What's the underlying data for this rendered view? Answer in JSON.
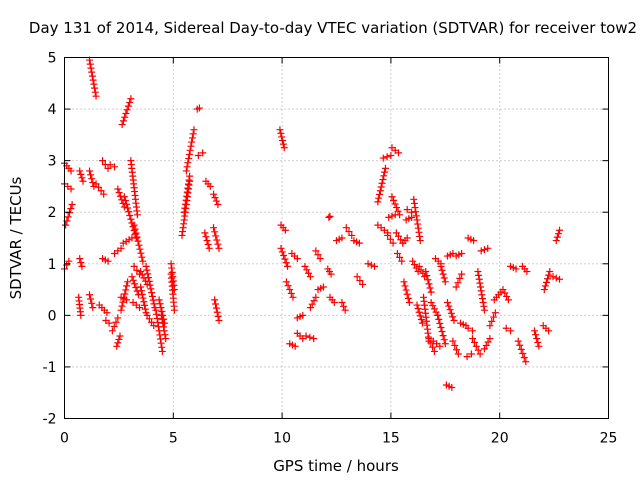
{
  "chart_data": {
    "type": "scatter",
    "title": "Day 131 of 2014, Sidereal Day-to-day VTEC variation (SDTVAR) for receiver tow2",
    "xlabel": "GPS time / hours",
    "ylabel": "SDTVAR / TECUs",
    "xlim": [
      0,
      25
    ],
    "ylim": [
      -2,
      5
    ],
    "xticks": [
      0,
      5,
      10,
      15,
      20,
      25
    ],
    "yticks": [
      -2,
      -1,
      0,
      1,
      2,
      3,
      4,
      5
    ],
    "xtick_labels": [
      "0",
      "5",
      "10",
      "15",
      "20",
      "25"
    ],
    "ytick_labels": [
      "-2",
      "-1",
      "0",
      "1",
      "2",
      "3",
      "4",
      "5"
    ],
    "grid": true,
    "marker": "+",
    "marker_color": "#ff0000",
    "tracks": [
      {
        "x": [
          0.0,
          0.2
        ],
        "y": [
          0.9,
          1.05
        ]
      },
      {
        "x": [
          0.05,
          0.35
        ],
        "y": [
          1.75,
          2.15
        ]
      },
      {
        "x": [
          0.0,
          0.3
        ],
        "y": [
          2.55,
          2.45
        ]
      },
      {
        "x": [
          0.0,
          0.3
        ],
        "y": [
          2.95,
          2.8
        ]
      },
      {
        "x": [
          0.65,
          0.75
        ],
        "y": [
          0.35,
          0.0
        ]
      },
      {
        "x": [
          0.7,
          0.8
        ],
        "y": [
          1.1,
          0.95
        ]
      },
      {
        "x": [
          0.7,
          0.85
        ],
        "y": [
          2.8,
          2.6
        ]
      },
      {
        "x": [
          1.15,
          1.45
        ],
        "y": [
          4.95,
          4.25
        ]
      },
      {
        "x": [
          1.15,
          1.35
        ],
        "y": [
          2.8,
          2.5
        ]
      },
      {
        "x": [
          1.15,
          1.3
        ],
        "y": [
          0.4,
          0.15
        ]
      },
      {
        "x": [
          1.45,
          1.8
        ],
        "y": [
          2.55,
          2.35
        ]
      },
      {
        "x": [
          1.6,
          1.95
        ],
        "y": [
          0.2,
          0.05
        ]
      },
      {
        "x": [
          1.75,
          2.0
        ],
        "y": [
          3.0,
          2.85
        ]
      },
      {
        "x": [
          1.75,
          2.0
        ],
        "y": [
          1.1,
          1.05
        ]
      },
      {
        "x": [
          1.9,
          2.05
        ],
        "y": [
          -0.1,
          -0.15
        ]
      },
      {
        "x": [
          2.1,
          2.3
        ],
        "y": [
          2.92,
          2.88
        ]
      },
      {
        "x": [
          2.2,
          2.45
        ],
        "y": [
          -0.3,
          -0.05
        ]
      },
      {
        "x": [
          2.3,
          2.6
        ],
        "y": [
          1.2,
          1.3
        ]
      },
      {
        "x": [
          2.4,
          2.55
        ],
        "y": [
          -0.6,
          -0.4
        ]
      },
      {
        "x": [
          2.45,
          2.75
        ],
        "y": [
          2.45,
          2.1
        ]
      },
      {
        "x": [
          2.6,
          2.9
        ],
        "y": [
          0.1,
          0.65
        ]
      },
      {
        "x": [
          2.7,
          3.1
        ],
        "y": [
          1.4,
          1.5
        ]
      },
      {
        "x": [
          2.6,
          2.85
        ],
        "y": [
          0.35,
          0.3
        ]
      },
      {
        "x": [
          2.65,
          3.05
        ],
        "y": [
          3.7,
          4.2
        ]
      },
      {
        "x": [
          2.75,
          3.3
        ],
        "y": [
          2.3,
          1.5
        ]
      },
      {
        "x": [
          3.1,
          3.4
        ],
        "y": [
          0.75,
          0.4
        ]
      },
      {
        "x": [
          3.15,
          3.45
        ],
        "y": [
          0.25,
          0.15
        ]
      },
      {
        "x": [
          3.05,
          3.35
        ],
        "y": [
          3.0,
          1.95
        ]
      },
      {
        "x": [
          3.2,
          3.6
        ],
        "y": [
          1.75,
          1.05
        ]
      },
      {
        "x": [
          3.2,
          3.45
        ],
        "y": [
          0.95,
          0.8
        ]
      },
      {
        "x": [
          3.5,
          3.8
        ],
        "y": [
          0.85,
          0.6
        ]
      },
      {
        "x": [
          3.5,
          3.75
        ],
        "y": [
          0.55,
          0.05
        ]
      },
      {
        "x": [
          3.75,
          4.15
        ],
        "y": [
          0.95,
          0.15
        ]
      },
      {
        "x": [
          3.8,
          4.1
        ],
        "y": [
          0.0,
          -0.2
        ]
      },
      {
        "x": [
          4.2,
          4.5
        ],
        "y": [
          0.1,
          -0.7
        ]
      },
      {
        "x": [
          4.35,
          4.6
        ],
        "y": [
          0.3,
          -0.15
        ]
      },
      {
        "x": [
          4.45,
          4.65
        ],
        "y": [
          0.0,
          -0.45
        ]
      },
      {
        "x": [
          4.9,
          5.05
        ],
        "y": [
          0.8,
          0.1
        ]
      },
      {
        "x": [
          4.9,
          5.05
        ],
        "y": [
          1.0,
          0.5
        ]
      },
      {
        "x": [
          5.4,
          5.75
        ],
        "y": [
          1.55,
          2.6
        ]
      },
      {
        "x": [
          5.5,
          5.75
        ],
        "y": [
          2.0,
          2.7
        ]
      },
      {
        "x": [
          5.6,
          5.95
        ],
        "y": [
          2.8,
          3.6
        ]
      },
      {
        "x": [
          6.15,
          6.35
        ],
        "y": [
          3.1,
          3.15
        ]
      },
      {
        "x": [
          6.1,
          6.2
        ],
        "y": [
          4.0,
          4.02
        ]
      },
      {
        "x": [
          6.45,
          6.65
        ],
        "y": [
          1.6,
          1.3
        ]
      },
      {
        "x": [
          6.5,
          6.7
        ],
        "y": [
          2.6,
          2.5
        ]
      },
      {
        "x": [
          6.85,
          7.05
        ],
        "y": [
          2.35,
          2.15
        ]
      },
      {
        "x": [
          6.85,
          7.1
        ],
        "y": [
          1.7,
          1.3
        ]
      },
      {
        "x": [
          6.9,
          7.1
        ],
        "y": [
          0.3,
          -0.1
        ]
      },
      {
        "x": [
          9.9,
          10.1
        ],
        "y": [
          3.6,
          3.25
        ]
      },
      {
        "x": [
          9.95,
          10.15
        ],
        "y": [
          1.75,
          1.65
        ]
      },
      {
        "x": [
          9.95,
          10.25
        ],
        "y": [
          1.3,
          0.95
        ]
      },
      {
        "x": [
          10.2,
          10.5
        ],
        "y": [
          0.65,
          0.35
        ]
      },
      {
        "x": [
          10.35,
          10.6
        ],
        "y": [
          -0.55,
          -0.6
        ]
      },
      {
        "x": [
          10.45,
          10.7
        ],
        "y": [
          1.2,
          1.1
        ]
      },
      {
        "x": [
          10.7,
          10.95
        ],
        "y": [
          -0.05,
          0.0
        ]
      },
      {
        "x": [
          10.7,
          10.95
        ],
        "y": [
          -0.35,
          -0.45
        ]
      },
      {
        "x": [
          11.05,
          11.3
        ],
        "y": [
          0.95,
          0.75
        ]
      },
      {
        "x": [
          11.1,
          11.45
        ],
        "y": [
          -0.4,
          -0.45
        ]
      },
      {
        "x": [
          11.3,
          11.55
        ],
        "y": [
          0.15,
          0.35
        ]
      },
      {
        "x": [
          11.55,
          11.75
        ],
        "y": [
          1.25,
          1.1
        ]
      },
      {
        "x": [
          11.65,
          11.9
        ],
        "y": [
          0.5,
          0.55
        ]
      },
      {
        "x": [
          12.1,
          12.25
        ],
        "y": [
          0.9,
          0.8
        ]
      },
      {
        "x": [
          12.2,
          12.4
        ],
        "y": [
          0.35,
          0.25
        ]
      },
      {
        "x": [
          12.15,
          12.2
        ],
        "y": [
          1.9,
          1.92
        ]
      },
      {
        "x": [
          12.5,
          12.75
        ],
        "y": [
          1.45,
          1.5
        ]
      },
      {
        "x": [
          12.75,
          12.9
        ],
        "y": [
          0.25,
          0.1
        ]
      },
      {
        "x": [
          12.95,
          13.2
        ],
        "y": [
          1.7,
          1.55
        ]
      },
      {
        "x": [
          13.3,
          13.55
        ],
        "y": [
          1.45,
          1.4
        ]
      },
      {
        "x": [
          13.45,
          13.7
        ],
        "y": [
          0.75,
          0.6
        ]
      },
      {
        "x": [
          13.95,
          14.25
        ],
        "y": [
          1.0,
          0.95
        ]
      },
      {
        "x": [
          14.4,
          14.85
        ],
        "y": [
          1.75,
          1.6
        ]
      },
      {
        "x": [
          14.4,
          14.75
        ],
        "y": [
          2.2,
          2.85
        ]
      },
      {
        "x": [
          14.65,
          15.0
        ],
        "y": [
          3.05,
          3.1
        ]
      },
      {
        "x": [
          14.85,
          15.1
        ],
        "y": [
          1.55,
          1.4
        ]
      },
      {
        "x": [
          14.9,
          15.2
        ],
        "y": [
          1.9,
          1.95
        ]
      },
      {
        "x": [
          15.05,
          15.35
        ],
        "y": [
          3.25,
          3.15
        ]
      },
      {
        "x": [
          15.05,
          15.4
        ],
        "y": [
          2.3,
          1.95
        ]
      },
      {
        "x": [
          15.25,
          15.55
        ],
        "y": [
          1.6,
          1.4
        ]
      },
      {
        "x": [
          15.3,
          15.5
        ],
        "y": [
          1.2,
          1.05
        ]
      },
      {
        "x": [
          15.55,
          15.75
        ],
        "y": [
          1.4,
          1.5
        ]
      },
      {
        "x": [
          15.6,
          15.85
        ],
        "y": [
          0.65,
          0.25
        ]
      },
      {
        "x": [
          15.7,
          15.95
        ],
        "y": [
          1.85,
          1.9
        ]
      },
      {
        "x": [
          15.75,
          15.95
        ],
        "y": [
          2.05,
          2.0
        ]
      },
      {
        "x": [
          16.0,
          16.25
        ],
        "y": [
          1.05,
          0.85
        ]
      },
      {
        "x": [
          16.05,
          16.35
        ],
        "y": [
          2.25,
          1.45
        ]
      },
      {
        "x": [
          16.2,
          16.45
        ],
        "y": [
          0.2,
          -0.15
        ]
      },
      {
        "x": [
          16.3,
          16.55
        ],
        "y": [
          0.95,
          0.75
        ]
      },
      {
        "x": [
          16.5,
          16.75
        ],
        "y": [
          0.35,
          -0.5
        ]
      },
      {
        "x": [
          16.6,
          16.85
        ],
        "y": [
          0.85,
          0.45
        ]
      },
      {
        "x": [
          16.75,
          17.0
        ],
        "y": [
          -0.45,
          -0.7
        ]
      },
      {
        "x": [
          16.85,
          17.15
        ],
        "y": [
          0.25,
          0.0
        ]
      },
      {
        "x": [
          16.95,
          17.25
        ],
        "y": [
          -0.5,
          -0.6
        ]
      },
      {
        "x": [
          17.05,
          17.3
        ],
        "y": [
          1.1,
          1.0
        ]
      },
      {
        "x": [
          17.15,
          17.5
        ],
        "y": [
          0.0,
          -0.55
        ]
      },
      {
        "x": [
          17.3,
          17.5
        ],
        "y": [
          0.95,
          0.65
        ]
      },
      {
        "x": [
          17.55,
          17.8
        ],
        "y": [
          -1.35,
          -1.4
        ]
      },
      {
        "x": [
          17.6,
          17.9
        ],
        "y": [
          0.25,
          -0.1
        ]
      },
      {
        "x": [
          17.6,
          17.85
        ],
        "y": [
          1.15,
          1.2
        ]
      },
      {
        "x": [
          17.85,
          18.1
        ],
        "y": [
          -0.5,
          -0.75
        ]
      },
      {
        "x": [
          18.0,
          18.25
        ],
        "y": [
          0.55,
          0.8
        ]
      },
      {
        "x": [
          18.0,
          18.25
        ],
        "y": [
          1.15,
          1.2
        ]
      },
      {
        "x": [
          18.2,
          18.45
        ],
        "y": [
          -0.15,
          -0.2
        ]
      },
      {
        "x": [
          18.5,
          18.7
        ],
        "y": [
          -0.8,
          -0.75
        ]
      },
      {
        "x": [
          18.55,
          18.8
        ],
        "y": [
          1.5,
          1.45
        ]
      },
      {
        "x": [
          18.55,
          18.75
        ],
        "y": [
          -0.25,
          -0.3
        ]
      },
      {
        "x": [
          18.75,
          19.1
        ],
        "y": [
          -0.45,
          -0.75
        ]
      },
      {
        "x": [
          19.0,
          19.3
        ],
        "y": [
          0.85,
          0.1
        ]
      },
      {
        "x": [
          19.15,
          19.45
        ],
        "y": [
          1.25,
          1.3
        ]
      },
      {
        "x": [
          19.3,
          19.55
        ],
        "y": [
          -0.65,
          -0.45
        ]
      },
      {
        "x": [
          19.55,
          19.8
        ],
        "y": [
          -0.2,
          0.05
        ]
      },
      {
        "x": [
          19.75,
          20.05
        ],
        "y": [
          0.3,
          0.45
        ]
      },
      {
        "x": [
          20.15,
          20.4
        ],
        "y": [
          0.5,
          0.3
        ]
      },
      {
        "x": [
          20.3,
          20.5
        ],
        "y": [
          -0.25,
          -0.3
        ]
      },
      {
        "x": [
          20.5,
          20.75
        ],
        "y": [
          0.95,
          0.9
        ]
      },
      {
        "x": [
          20.85,
          21.2
        ],
        "y": [
          -0.5,
          -0.9
        ]
      },
      {
        "x": [
          21.05,
          21.25
        ],
        "y": [
          0.95,
          0.85
        ]
      },
      {
        "x": [
          21.6,
          21.8
        ],
        "y": [
          -0.3,
          -0.6
        ]
      },
      {
        "x": [
          22.0,
          22.25
        ],
        "y": [
          -0.2,
          -0.3
        ]
      },
      {
        "x": [
          22.05,
          22.3
        ],
        "y": [
          0.5,
          0.85
        ]
      },
      {
        "x": [
          22.45,
          22.75
        ],
        "y": [
          0.75,
          0.7
        ]
      },
      {
        "x": [
          22.6,
          22.75
        ],
        "y": [
          1.45,
          1.65
        ]
      }
    ]
  }
}
